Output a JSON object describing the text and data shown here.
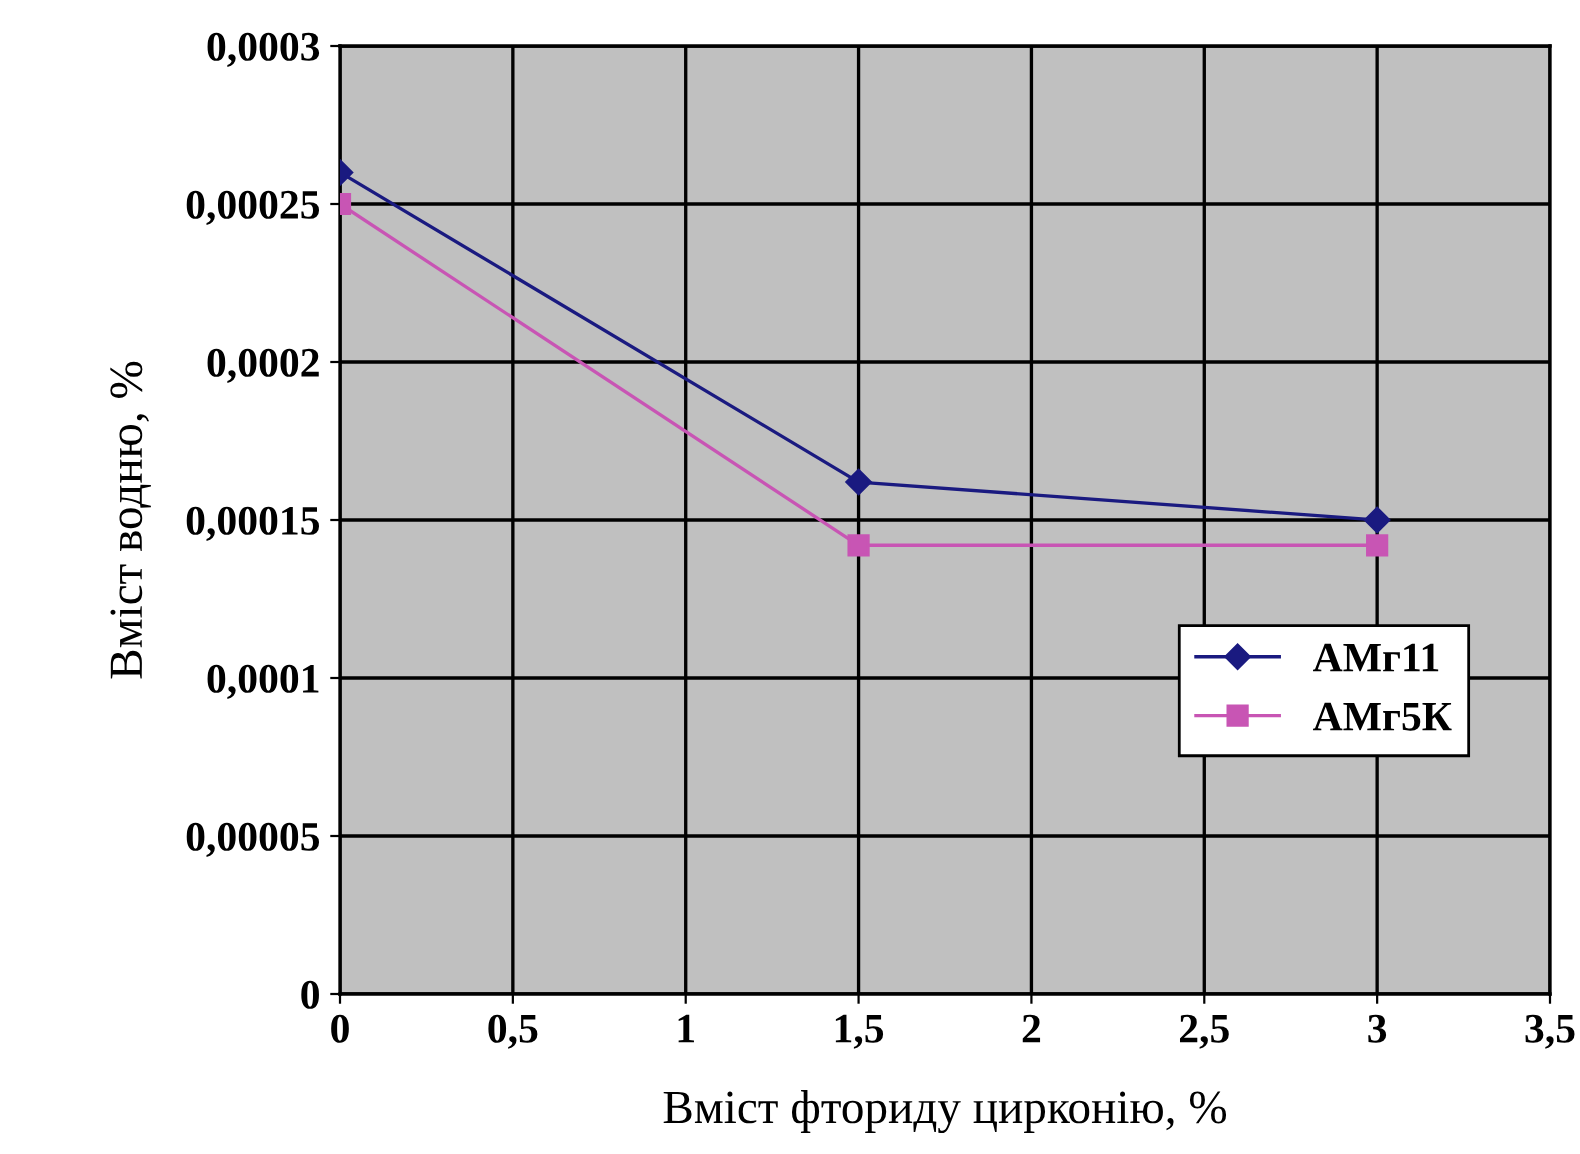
{
  "chart_data": {
    "type": "line",
    "xlabel": "Вміст фториду цирконію, %",
    "ylabel": "Вміст водню, %",
    "x": [
      0,
      1.5,
      3
    ],
    "series": [
      {
        "name": "АМг11",
        "color": "#1a1a80",
        "marker": "diamond",
        "values": [
          0.00026,
          0.000162,
          0.00015
        ]
      },
      {
        "name": "АМг5К",
        "color": "#c855b4",
        "marker": "square",
        "values": [
          0.00025,
          0.000142,
          0.000142
        ]
      }
    ],
    "xlim": [
      0,
      3.5
    ],
    "xticks": [
      0,
      {
        "value": 0.5,
        "label": "0,5"
      },
      1,
      {
        "value": 1.5,
        "label": "1,5"
      },
      2,
      {
        "value": 2.5,
        "label": "2,5"
      },
      3,
      {
        "value": 3.5,
        "label": "3,5"
      }
    ],
    "ylim": [
      0,
      0.0003
    ],
    "yticks": [
      0,
      {
        "value": 5e-05,
        "label": "0,00005"
      },
      {
        "value": 0.0001,
        "label": "0,0001"
      },
      {
        "value": 0.00015,
        "label": "0,00015"
      },
      {
        "value": 0.0002,
        "label": "0,0002"
      },
      {
        "value": 0.00025,
        "label": "0,00025"
      },
      {
        "value": 0.0003,
        "label": "0,0003"
      }
    ],
    "grid": true,
    "legend": "right",
    "line_style": "solid"
  }
}
